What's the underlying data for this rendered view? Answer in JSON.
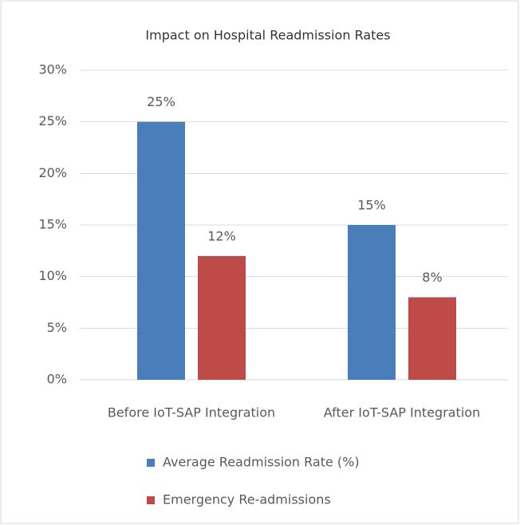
{
  "chart_data": {
    "type": "bar",
    "title": "Impact on Hospital Readmission Rates",
    "categories": [
      "Before IoT-SAP Integration",
      "After IoT-SAP Integration"
    ],
    "series": [
      {
        "name": "Average Readmission Rate (%)",
        "color": "#4a7ebb",
        "values": [
          25,
          15
        ],
        "value_labels": [
          "25%",
          "15%"
        ]
      },
      {
        "name": "Emergency Re-admissions",
        "color": "#be4b48",
        "values": [
          12,
          8
        ],
        "value_labels": [
          "12%",
          "8%"
        ]
      }
    ],
    "ylim": [
      0,
      30
    ],
    "yticks": [
      {
        "value": 0,
        "label": "0%"
      },
      {
        "value": 5,
        "label": "5%"
      },
      {
        "value": 10,
        "label": "10%"
      },
      {
        "value": 15,
        "label": "15%"
      },
      {
        "value": 20,
        "label": "20%"
      },
      {
        "value": 25,
        "label": "25%"
      },
      {
        "value": 30,
        "label": "30%"
      }
    ],
    "grid": true,
    "legend": "bottom"
  }
}
